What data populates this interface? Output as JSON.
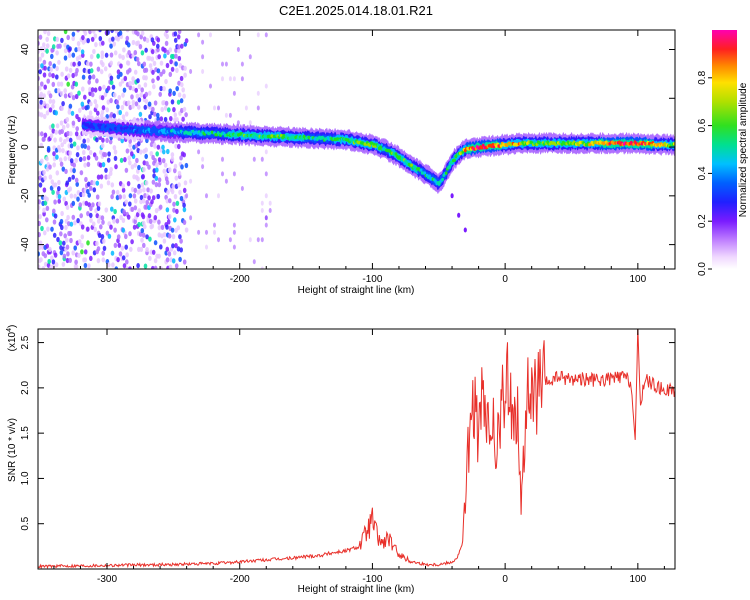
{
  "title": "C2E1.2025.014.18.01.R21",
  "chart_data": [
    {
      "type": "heatmap",
      "name": "spectrogram",
      "xlabel": "Height of straight line (km)",
      "ylabel": "Frequency (Hz)",
      "xlim": [
        -352,
        128
      ],
      "ylim": [
        -50,
        48
      ],
      "xticks": [
        -300,
        -200,
        -100,
        0,
        100
      ],
      "yticks": [
        -40,
        -20,
        0,
        20,
        40
      ],
      "colorbar": {
        "label": "Normalized spectral amplitude",
        "range": [
          0,
          1
        ],
        "ticks": [
          0.0,
          0.2,
          0.4,
          0.6,
          0.8
        ],
        "tick_labels": [
          "0.0",
          "0.2",
          "0.4",
          "0.6",
          "0.8"
        ],
        "colors": [
          "#ffffff",
          "#e6c8ff",
          "#b070ff",
          "#7a1cff",
          "#2d1cff",
          "#0a50ff",
          "#00b8ff",
          "#00e0a0",
          "#20e020",
          "#9de000",
          "#f0e000",
          "#ff9a00",
          "#ff3a00",
          "#ff0060",
          "#ff00b0"
        ]
      },
      "ridge": {
        "x": [
          -318,
          -300,
          -280,
          -260,
          -240,
          -220,
          -200,
          -180,
          -160,
          -140,
          -120,
          -100,
          -90,
          -80,
          -70,
          -60,
          -50,
          -45,
          -40,
          -35,
          -30,
          -20,
          -10,
          0,
          10,
          20,
          40,
          60,
          80,
          100,
          120,
          128
        ],
        "y": [
          9,
          8,
          7,
          6.5,
          6,
          5.5,
          5,
          4.5,
          4,
          3.5,
          3,
          1,
          -1,
          -4,
          -8,
          -11,
          -15,
          -11,
          -6,
          -3,
          -1,
          0,
          0.5,
          1,
          1.5,
          1.5,
          1.5,
          1.5,
          1.5,
          1.5,
          1,
          1
        ],
        "amplitude": [
          0.3,
          0.35,
          0.35,
          0.4,
          0.45,
          0.5,
          0.55,
          0.55,
          0.55,
          0.5,
          0.55,
          0.6,
          0.5,
          0.6,
          0.55,
          0.5,
          0.45,
          0.5,
          0.55,
          0.6,
          0.75,
          0.95,
          0.9,
          0.7,
          0.75,
          0.6,
          0.6,
          0.65,
          0.85,
          0.9,
          0.65,
          0.6
        ]
      },
      "noise_region": {
        "x_from": -352,
        "x_to": -240,
        "level": 0.35
      },
      "sparse_region": {
        "x_from": -240,
        "x_to": -175,
        "level": 0.12
      },
      "tail": {
        "x": [
          -40,
          -35,
          -30
        ],
        "y": [
          -20,
          -28,
          -34
        ]
      }
    },
    {
      "type": "line",
      "name": "snr",
      "xlabel": "Height of straight line (km)",
      "ylabel": "SNR (10 * v/v)",
      "scale_label": "(x10",
      "scale_exponent": "4",
      "xlim": [
        -352,
        128
      ],
      "ylim": [
        0,
        2.65
      ],
      "xticks": [
        -300,
        -200,
        -100,
        0,
        100
      ],
      "yticks": [
        0.5,
        1.0,
        1.5,
        2.0,
        2.5
      ],
      "ytick_labels": [
        "0.5",
        "1.0",
        "1.5",
        "2.0",
        "2.5"
      ],
      "color": "#e8302a",
      "series": [
        {
          "name": "SNR",
          "x": [
            -352,
            -300,
            -250,
            -220,
            -200,
            -180,
            -160,
            -150,
            -140,
            -130,
            -120,
            -110,
            -104,
            -100,
            -96,
            -92,
            -88,
            -84,
            -80,
            -76,
            -70,
            -60,
            -50,
            -40,
            -36,
            -32,
            -30,
            -28,
            -25,
            -22,
            -20,
            -17,
            -14,
            -10,
            -6,
            -2,
            0,
            3,
            6,
            10,
            12,
            16,
            20,
            25,
            30,
            35,
            40,
            50,
            60,
            70,
            80,
            90,
            95,
            98,
            100,
            102,
            105,
            110,
            115,
            120,
            128
          ],
          "y": [
            0.03,
            0.04,
            0.05,
            0.06,
            0.08,
            0.1,
            0.12,
            0.14,
            0.15,
            0.18,
            0.2,
            0.25,
            0.42,
            0.55,
            0.35,
            0.28,
            0.35,
            0.22,
            0.18,
            0.12,
            0.08,
            0.05,
            0.05,
            0.08,
            0.12,
            0.3,
            0.8,
            1.3,
            1.7,
            1.8,
            1.4,
            1.9,
            1.5,
            1.6,
            1.3,
            1.9,
            1.7,
            2.25,
            1.6,
            1.8,
            0.6,
            1.9,
            1.85,
            1.95,
            2.05,
            2.08,
            2.12,
            2.1,
            2.1,
            2.08,
            2.1,
            2.12,
            2.05,
            1.4,
            2.6,
            1.8,
            2.1,
            2.05,
            2.0,
            1.98,
            1.97
          ]
        }
      ]
    }
  ]
}
